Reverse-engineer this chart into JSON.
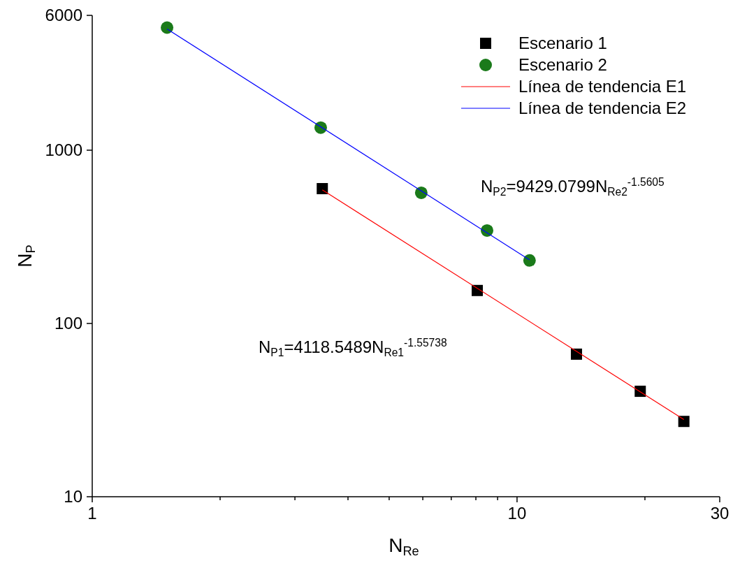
{
  "chart_data": {
    "type": "scatter",
    "xlabel": "N$_{Re}$",
    "ylabel": "N$_{P}$",
    "log": "xy",
    "legend": "top right",
    "grid": false,
    "xlim": [
      1,
      30
    ],
    "ylim": [
      10,
      6000
    ],
    "xticks": [
      1,
      {
        "value": 2,
        "label": null
      },
      {
        "value": 3,
        "label": null
      },
      {
        "value": 4,
        "label": null
      },
      {
        "value": 5,
        "label": null
      },
      {
        "value": 6,
        "label": null
      },
      {
        "value": 7,
        "label": null
      },
      {
        "value": 8,
        "label": null
      },
      {
        "value": 9,
        "label": null
      },
      10,
      {
        "value": 20,
        "label": null
      },
      30
    ],
    "yticks": [
      10,
      100,
      1000,
      6000
    ],
    "series": [
      {
        "name": "Escenario 1",
        "marker": "square",
        "color": "#000000",
        "x": [
          3.48,
          8.06,
          13.8,
          19.5,
          24.7
        ],
        "values": [
          600,
          155,
          66.5,
          40.6,
          27.2
        ]
      },
      {
        "name": "Escenario 2",
        "marker": "circle",
        "color": "#1a7a1a",
        "x": [
          1.5,
          3.45,
          5.95,
          8.5,
          10.7
        ],
        "values": [
          5100,
          1350,
          568,
          344,
          231
        ]
      },
      {
        "name": "Línea de tendencia E1",
        "type": "line",
        "color": "#ff0000",
        "x": [
          3.48,
          24.7
        ],
        "values": [
          590,
          27.9
        ]
      },
      {
        "name": "Línea de tendencia E2",
        "type": "line",
        "color": "#0000ff",
        "x": [
          1.5,
          10.7
        ],
        "values": [
          5010,
          233
        ]
      }
    ],
    "annotations": [
      "N$_{P2}$=9429.0799N$_{Re2}$$^{-1.5605}$",
      "N$_{P1}$=4118.5489N$_{Re1}$$^{-1.55738}$"
    ]
  }
}
